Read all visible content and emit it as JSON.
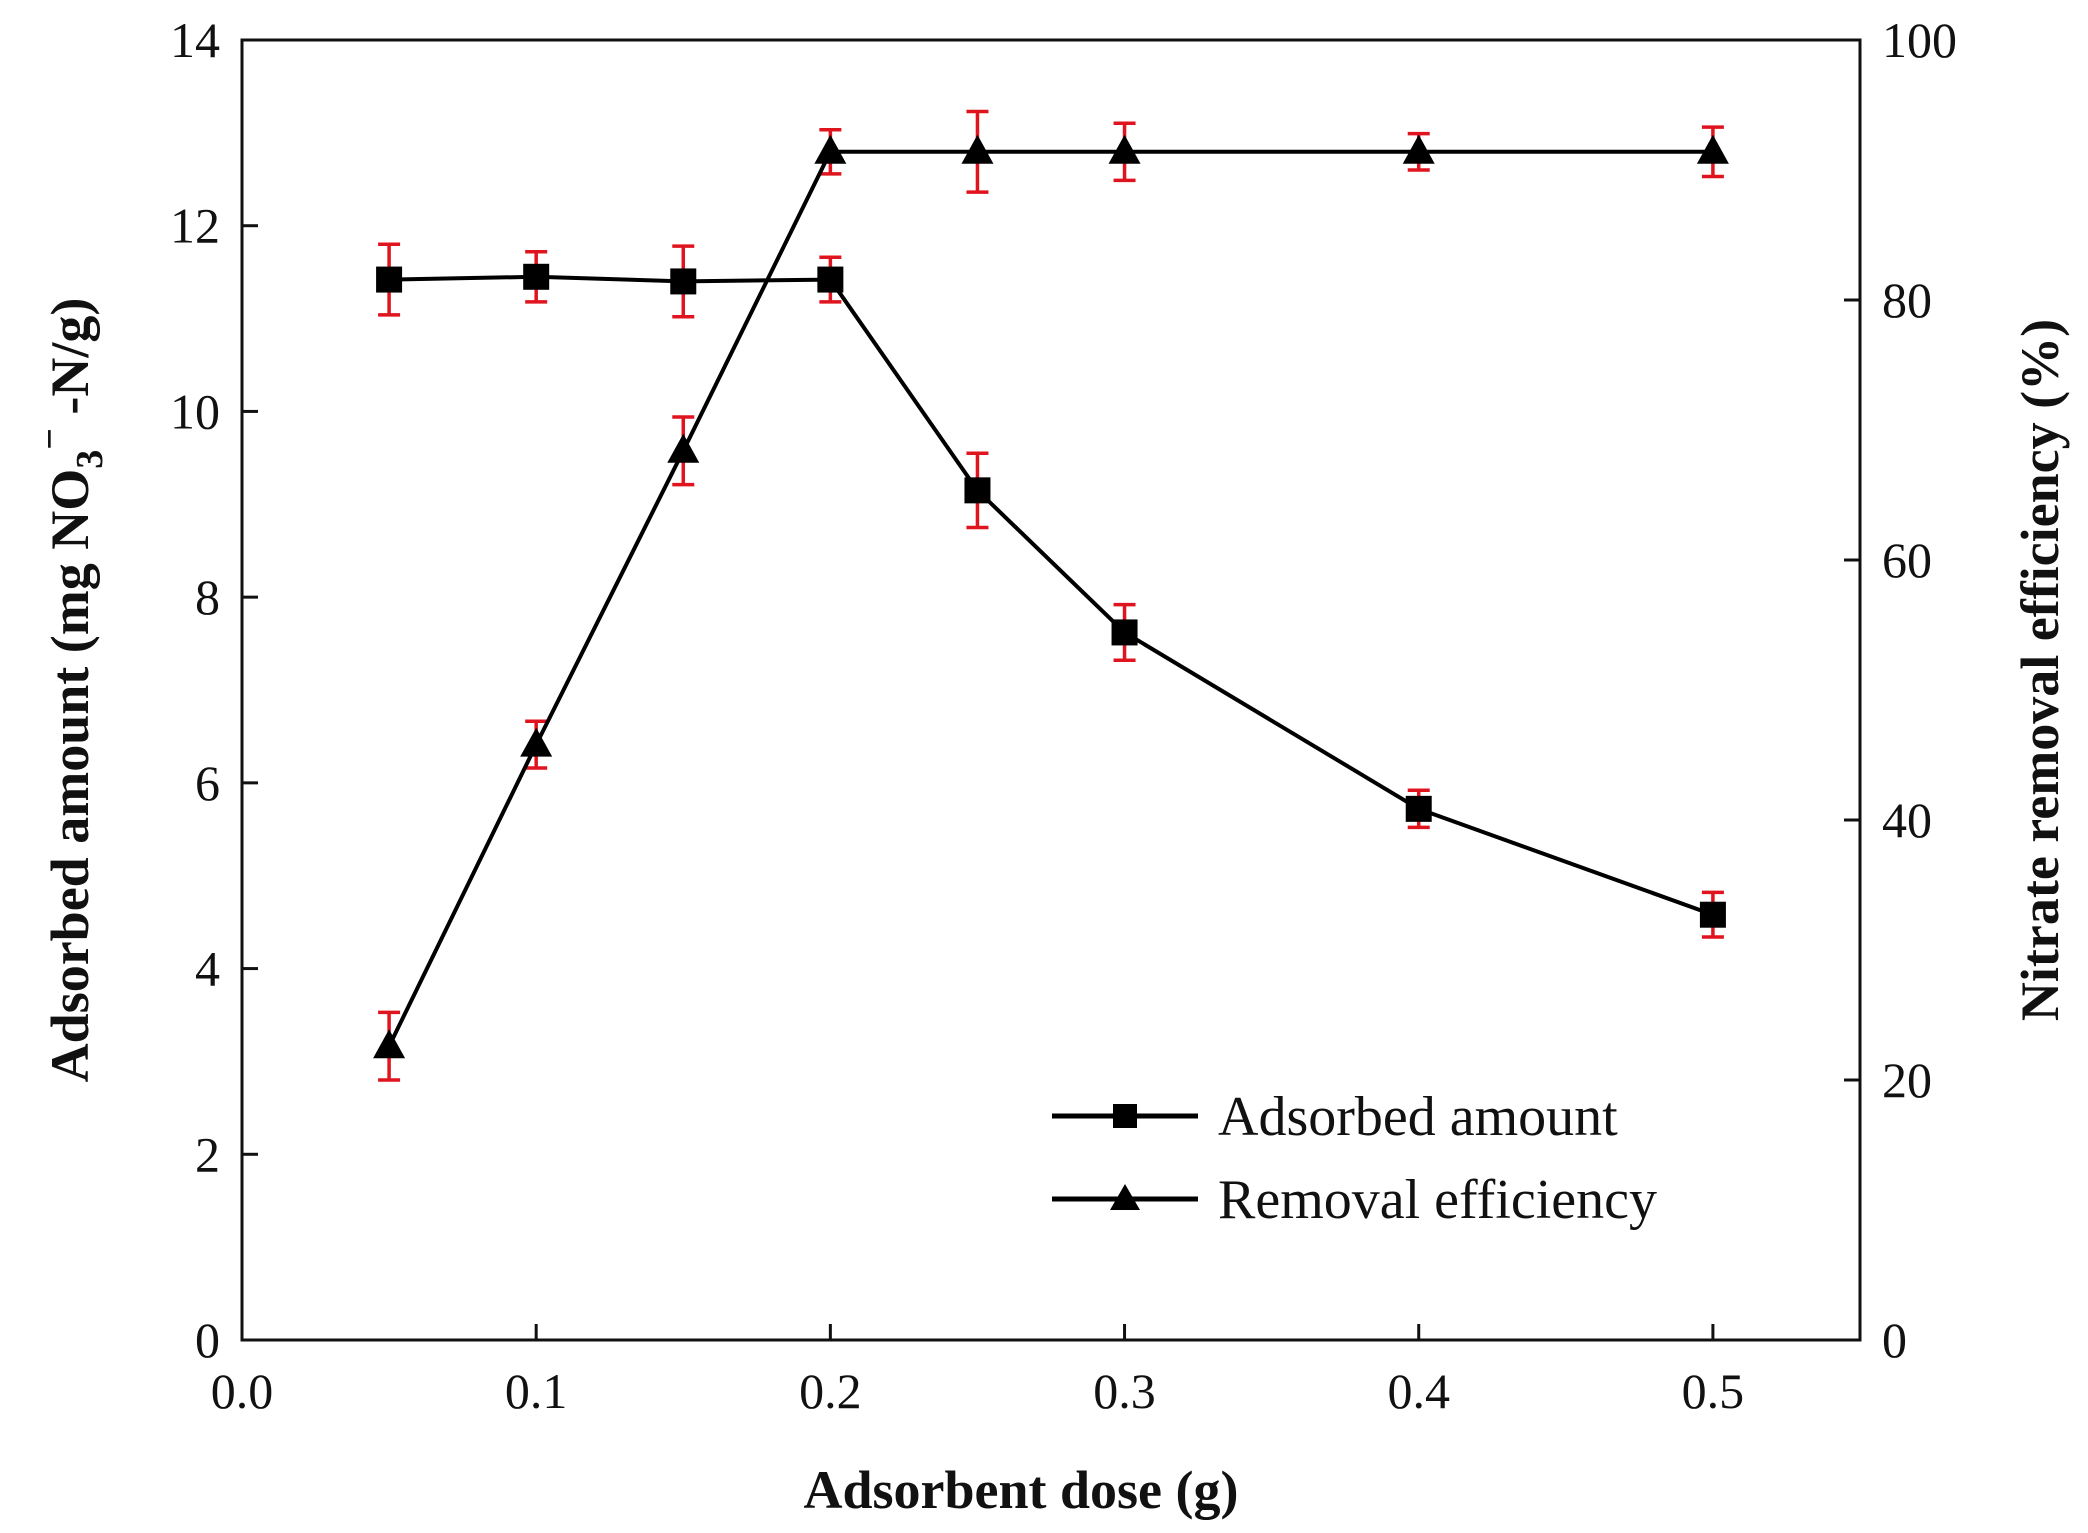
{
  "chart_data": {
    "type": "line",
    "xlabel": "Adsorbent dose (g)",
    "ylabel_left": {
      "prefix": "Adsorbed amount (mg NO",
      "sub": "3",
      "sup": "−",
      "suffix": " -N/g)"
    },
    "ylabel_right": "Nitrate removal efficiency (%)",
    "xlim": [
      0.0,
      0.55
    ],
    "ylim_left": [
      0,
      14
    ],
    "ylim_right": [
      0,
      100
    ],
    "x_ticks": [
      "0.0",
      "0.1",
      "0.2",
      "0.3",
      "0.4",
      "0.5"
    ],
    "y_left_ticks": [
      "0",
      "2",
      "4",
      "6",
      "8",
      "10",
      "12",
      "14"
    ],
    "y_right_ticks": [
      "0",
      "20",
      "40",
      "60",
      "80",
      "100"
    ],
    "grid": false,
    "legend_position": "bottom-right",
    "series": [
      {
        "name": "Adsorbed amount",
        "axis": "left",
        "marker": "square",
        "color": "#000000",
        "errorbar_color": "#e0141e",
        "x": [
          0.05,
          0.1,
          0.15,
          0.2,
          0.25,
          0.3,
          0.4,
          0.5
        ],
        "y": [
          11.42,
          11.45,
          11.4,
          11.42,
          9.15,
          7.62,
          5.72,
          4.58
        ],
        "err": [
          0.38,
          0.27,
          0.38,
          0.24,
          0.4,
          0.3,
          0.2,
          0.24
        ]
      },
      {
        "name": "Removal efficiency",
        "axis": "right",
        "marker": "triangle",
        "color": "#000000",
        "errorbar_color": "#e0141e",
        "x": [
          0.05,
          0.1,
          0.15,
          0.2,
          0.25,
          0.3,
          0.4,
          0.5
        ],
        "y": [
          22.6,
          45.8,
          68.4,
          91.4,
          91.4,
          91.4,
          91.4,
          91.4
        ],
        "err": [
          2.6,
          1.8,
          2.6,
          1.7,
          3.1,
          2.2,
          1.4,
          1.9
        ]
      }
    ]
  }
}
